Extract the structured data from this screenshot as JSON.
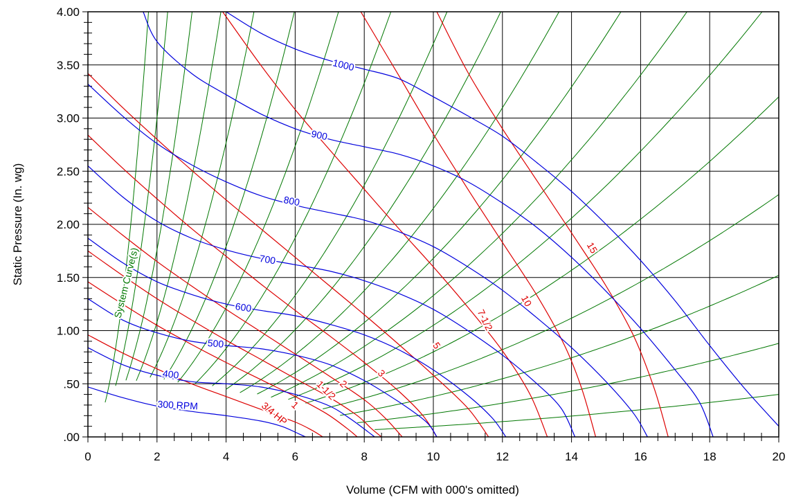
{
  "chart_data": {
    "type": "line",
    "title": "",
    "xlabel": "Volume (CFM with 000's omitted)",
    "ylabel": "Static Pressure (In. wg)",
    "xlim": [
      0,
      20
    ],
    "ylim": [
      0,
      4
    ],
    "grid": true,
    "x_ticks": [
      "0",
      "2",
      "4",
      "6",
      "8",
      "10",
      "12",
      "14",
      "16",
      "18",
      "20"
    ],
    "y_ticks": [
      ".00",
      ".50",
      "1.00",
      "1.50",
      "2.00",
      "2.50",
      "3.00",
      "3.50",
      "4.00"
    ],
    "colors": {
      "rpm": "#0000dd",
      "hp": "#dd0000",
      "system": "#007700",
      "grid": "#000000"
    },
    "rpm_curves": [
      {
        "name": "300 RPM",
        "points": [
          [
            0,
            0.47
          ],
          [
            1,
            0.37
          ],
          [
            2,
            0.29
          ],
          [
            3,
            0.24
          ],
          [
            4,
            0.2
          ],
          [
            5,
            0.15
          ],
          [
            5.6,
            0.1
          ],
          [
            6.1,
            0.03
          ],
          [
            6.3,
            0.0
          ]
        ]
      },
      {
        "name": "400",
        "points": [
          [
            0,
            0.84
          ],
          [
            1,
            0.68
          ],
          [
            2,
            0.58
          ],
          [
            3,
            0.52
          ],
          [
            4,
            0.5
          ],
          [
            5,
            0.47
          ],
          [
            6,
            0.4
          ],
          [
            7,
            0.29
          ],
          [
            7.6,
            0.17
          ],
          [
            8.1,
            0.05
          ],
          [
            8.3,
            0.0
          ]
        ]
      },
      {
        "name": "500",
        "points": [
          [
            0,
            1.3
          ],
          [
            1,
            1.1
          ],
          [
            2,
            0.98
          ],
          [
            3,
            0.9
          ],
          [
            4,
            0.86
          ],
          [
            5,
            0.83
          ],
          [
            6,
            0.77
          ],
          [
            7,
            0.68
          ],
          [
            8,
            0.53
          ],
          [
            9,
            0.33
          ],
          [
            9.8,
            0.14
          ],
          [
            10.1,
            0.0
          ]
        ]
      },
      {
        "name": "600",
        "points": [
          [
            0,
            1.87
          ],
          [
            1,
            1.64
          ],
          [
            2,
            1.46
          ],
          [
            3,
            1.34
          ],
          [
            4,
            1.25
          ],
          [
            5,
            1.19
          ],
          [
            6,
            1.14
          ],
          [
            7,
            1.06
          ],
          [
            8,
            0.96
          ],
          [
            9,
            0.82
          ],
          [
            10,
            0.63
          ],
          [
            11,
            0.39
          ],
          [
            11.7,
            0.18
          ],
          [
            12.1,
            0.0
          ]
        ]
      },
      {
        "name": "700",
        "points": [
          [
            0,
            2.55
          ],
          [
            1,
            2.26
          ],
          [
            2,
            2.03
          ],
          [
            3,
            1.87
          ],
          [
            4,
            1.76
          ],
          [
            5,
            1.68
          ],
          [
            6,
            1.62
          ],
          [
            7,
            1.56
          ],
          [
            8,
            1.47
          ],
          [
            9,
            1.35
          ],
          [
            10,
            1.2
          ],
          [
            11,
            1.0
          ],
          [
            12,
            0.77
          ],
          [
            13,
            0.5
          ],
          [
            13.7,
            0.27
          ],
          [
            14.1,
            0.0
          ]
        ]
      },
      {
        "name": "800",
        "points": [
          [
            0,
            3.32
          ],
          [
            1,
            3.02
          ],
          [
            2,
            2.76
          ],
          [
            3,
            2.56
          ],
          [
            4,
            2.4
          ],
          [
            5,
            2.27
          ],
          [
            6,
            2.18
          ],
          [
            7,
            2.11
          ],
          [
            8,
            2.04
          ],
          [
            9,
            1.93
          ],
          [
            10,
            1.79
          ],
          [
            11,
            1.6
          ],
          [
            12,
            1.38
          ],
          [
            13,
            1.12
          ],
          [
            14,
            0.84
          ],
          [
            15,
            0.52
          ],
          [
            15.8,
            0.22
          ],
          [
            16.2,
            0.0
          ]
        ]
      },
      {
        "name": "900",
        "points": [
          [
            1.6,
            4.0
          ],
          [
            2,
            3.72
          ],
          [
            3,
            3.42
          ],
          [
            4,
            3.22
          ],
          [
            5,
            3.04
          ],
          [
            6,
            2.9
          ],
          [
            7,
            2.8
          ],
          [
            8,
            2.73
          ],
          [
            9,
            2.66
          ],
          [
            10,
            2.55
          ],
          [
            11,
            2.4
          ],
          [
            12,
            2.2
          ],
          [
            13,
            1.97
          ],
          [
            14,
            1.69
          ],
          [
            15,
            1.37
          ],
          [
            16,
            1.02
          ],
          [
            17,
            0.63
          ],
          [
            17.7,
            0.33
          ],
          [
            18.1,
            0.0
          ]
        ]
      },
      {
        "name": "1000",
        "points": [
          [
            4.0,
            4.0
          ],
          [
            5,
            3.8
          ],
          [
            6,
            3.65
          ],
          [
            7,
            3.54
          ],
          [
            8,
            3.46
          ],
          [
            9,
            3.37
          ],
          [
            10,
            3.2
          ],
          [
            11,
            3.02
          ],
          [
            12,
            2.83
          ],
          [
            13,
            2.58
          ],
          [
            14,
            2.31
          ],
          [
            15,
            2.0
          ],
          [
            16,
            1.66
          ],
          [
            17,
            1.28
          ],
          [
            18,
            0.86
          ],
          [
            19,
            0.46
          ],
          [
            20,
            0.1
          ]
        ]
      }
    ],
    "hp_curves": [
      {
        "name": "3/4 HP",
        "points": [
          [
            0,
            0.96
          ],
          [
            1,
            0.79
          ],
          [
            2,
            0.64
          ],
          [
            3,
            0.5
          ],
          [
            4,
            0.38
          ],
          [
            5,
            0.26
          ],
          [
            6,
            0.14
          ],
          [
            6.5,
            0.06
          ],
          [
            6.8,
            0.0
          ]
        ]
      },
      {
        "name": "1",
        "points": [
          [
            0,
            1.46
          ],
          [
            1,
            1.25
          ],
          [
            2,
            1.05
          ],
          [
            3,
            0.87
          ],
          [
            4,
            0.7
          ],
          [
            5,
            0.54
          ],
          [
            6,
            0.38
          ],
          [
            6.9,
            0.22
          ],
          [
            7.5,
            0.08
          ],
          [
            7.8,
            0.0
          ]
        ]
      },
      {
        "name": "1-1/2",
        "points": [
          [
            0,
            1.75
          ],
          [
            1,
            1.52
          ],
          [
            2,
            1.3
          ],
          [
            3,
            1.1
          ],
          [
            4,
            0.91
          ],
          [
            5,
            0.73
          ],
          [
            6,
            0.55
          ],
          [
            7,
            0.37
          ],
          [
            7.8,
            0.2
          ],
          [
            8.2,
            0.08
          ],
          [
            8.5,
            0.0
          ]
        ]
      },
      {
        "name": "2",
        "points": [
          [
            0,
            2.16
          ],
          [
            1,
            1.9
          ],
          [
            2,
            1.65
          ],
          [
            3,
            1.42
          ],
          [
            4,
            1.2
          ],
          [
            5,
            0.99
          ],
          [
            6,
            0.78
          ],
          [
            7,
            0.57
          ],
          [
            8,
            0.35
          ],
          [
            8.6,
            0.18
          ],
          [
            9.1,
            0.0
          ]
        ]
      },
      {
        "name": "3",
        "points": [
          [
            0,
            2.84
          ],
          [
            1,
            2.53
          ],
          [
            2,
            2.24
          ],
          [
            3,
            1.96
          ],
          [
            4,
            1.7
          ],
          [
            5,
            1.44
          ],
          [
            6,
            1.19
          ],
          [
            7,
            0.95
          ],
          [
            8,
            0.7
          ],
          [
            9,
            0.43
          ],
          [
            9.7,
            0.2
          ],
          [
            10.1,
            0.0
          ]
        ]
      },
      {
        "name": "5",
        "points": [
          [
            0,
            3.42
          ],
          [
            1,
            3.1
          ],
          [
            2,
            2.8
          ],
          [
            3,
            2.51
          ],
          [
            4,
            2.23
          ],
          [
            5,
            1.96
          ],
          [
            6,
            1.69
          ],
          [
            7,
            1.42
          ],
          [
            8,
            1.15
          ],
          [
            9,
            0.87
          ],
          [
            10,
            0.58
          ],
          [
            11,
            0.27
          ],
          [
            11.6,
            0.0
          ]
        ]
      },
      {
        "name": "7-1/2",
        "points": [
          [
            3.9,
            4.0
          ],
          [
            5,
            3.5
          ],
          [
            6,
            3.08
          ],
          [
            7,
            2.7
          ],
          [
            8,
            2.33
          ],
          [
            9,
            1.96
          ],
          [
            10,
            1.6
          ],
          [
            11,
            1.22
          ],
          [
            12,
            0.81
          ],
          [
            12.8,
            0.4
          ],
          [
            13.3,
            0.0
          ]
        ]
      },
      {
        "name": "10",
        "points": [
          [
            7.9,
            4.0
          ],
          [
            9,
            3.4
          ],
          [
            10,
            2.85
          ],
          [
            11,
            2.33
          ],
          [
            12,
            1.83
          ],
          [
            13,
            1.33
          ],
          [
            13.8,
            0.86
          ],
          [
            14.3,
            0.45
          ],
          [
            14.7,
            0.0
          ]
        ]
      },
      {
        "name": "15",
        "points": [
          [
            10.1,
            4.0
          ],
          [
            11,
            3.43
          ],
          [
            12,
            2.9
          ],
          [
            13,
            2.41
          ],
          [
            14,
            1.92
          ],
          [
            15,
            1.42
          ],
          [
            15.8,
            0.95
          ],
          [
            16.4,
            0.45
          ],
          [
            16.8,
            0.0
          ]
        ]
      }
    ],
    "system_curves": [
      {
        "name": "System Curve(s)",
        "k": 1.3,
        "x_start": 0.5
      },
      {
        "k": 0.75,
        "x_start": 0.8
      },
      {
        "k": 0.44,
        "x_start": 1.1
      },
      {
        "k": 0.27,
        "x_start": 1.4
      },
      {
        "k": 0.173,
        "x_start": 1.8
      },
      {
        "k": 0.112,
        "x_start": 2.2
      },
      {
        "k": 0.076,
        "x_start": 2.6
      },
      {
        "k": 0.052,
        "x_start": 3.1
      },
      {
        "k": 0.037,
        "x_start": 3.6
      },
      {
        "k": 0.028,
        "x_start": 4.0
      },
      {
        "k": 0.0215,
        "x_start": 4.4
      },
      {
        "k": 0.0168,
        "x_start": 4.9
      },
      {
        "k": 0.0133,
        "x_start": 5.3
      },
      {
        "k": 0.0105,
        "x_start": 5.8
      },
      {
        "k": 0.008,
        "x_start": 6.3
      },
      {
        "k": 0.0057,
        "x_start": 6.8
      },
      {
        "k": 0.0038,
        "x_start": 7.3
      },
      {
        "k": 0.0022,
        "x_start": 7.8
      },
      {
        "k": 0.001,
        "x_start": 8.3
      }
    ],
    "labels": [
      {
        "text": "300  RPM",
        "x": 2.6,
        "y": 0.3,
        "angle": 3,
        "color": "rpm"
      },
      {
        "text": "400",
        "x": 2.4,
        "y": 0.59,
        "angle": 7,
        "color": "rpm"
      },
      {
        "text": "500",
        "x": 3.7,
        "y": 0.88,
        "angle": 5,
        "color": "rpm"
      },
      {
        "text": "600",
        "x": 4.5,
        "y": 1.22,
        "angle": 8,
        "color": "rpm"
      },
      {
        "text": "700",
        "x": 5.2,
        "y": 1.67,
        "angle": 9,
        "color": "rpm"
      },
      {
        "text": "800",
        "x": 5.9,
        "y": 2.22,
        "angle": 11,
        "color": "rpm"
      },
      {
        "text": "900",
        "x": 6.7,
        "y": 2.84,
        "angle": 12,
        "color": "rpm"
      },
      {
        "text": "1000",
        "x": 7.4,
        "y": 3.5,
        "angle": 14,
        "color": "rpm"
      },
      {
        "text": "3/4 HP",
        "x": 5.4,
        "y": 0.22,
        "angle": 40,
        "color": "hp"
      },
      {
        "text": "1",
        "x": 6.0,
        "y": 0.3,
        "angle": 42,
        "color": "hp"
      },
      {
        "text": "1-1/2",
        "x": 6.9,
        "y": 0.44,
        "angle": 45,
        "color": "hp"
      },
      {
        "text": "2",
        "x": 7.4,
        "y": 0.5,
        "angle": 46,
        "color": "hp"
      },
      {
        "text": "3",
        "x": 8.5,
        "y": 0.6,
        "angle": 48,
        "color": "hp"
      },
      {
        "text": "5",
        "x": 10.1,
        "y": 0.86,
        "angle": 55,
        "color": "hp"
      },
      {
        "text": "7-1/2",
        "x": 11.5,
        "y": 1.1,
        "angle": 64,
        "color": "hp"
      },
      {
        "text": "10",
        "x": 12.7,
        "y": 1.28,
        "angle": 62,
        "color": "hp"
      },
      {
        "text": "15",
        "x": 14.6,
        "y": 1.78,
        "angle": 60,
        "color": "hp"
      },
      {
        "text": "System Curve(s)",
        "x": 1.1,
        "y": 1.45,
        "angle": -76,
        "color": "system"
      }
    ]
  }
}
